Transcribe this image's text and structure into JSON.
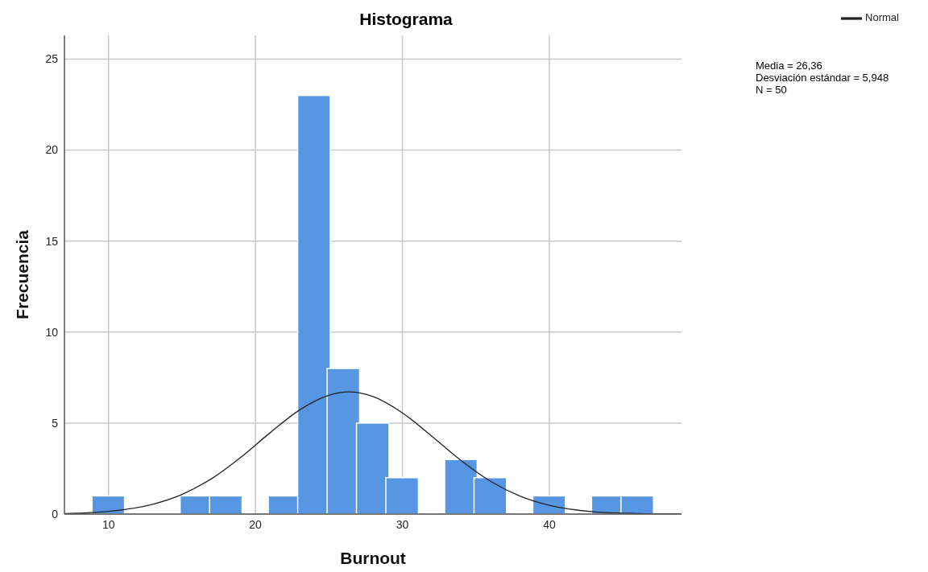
{
  "chart_data": {
    "type": "histogram",
    "title": "Histograma",
    "xlabel": "Burnout",
    "ylabel": "Frecuencia",
    "bins": [
      9,
      11,
      13,
      15,
      17,
      19,
      21,
      23,
      25,
      27,
      29,
      31,
      33,
      35,
      37,
      39,
      41,
      43,
      45,
      47
    ],
    "values": [
      1,
      0,
      0,
      1,
      1,
      0,
      1,
      23,
      8,
      5,
      2,
      0,
      3,
      2,
      0,
      1,
      0,
      1,
      1
    ],
    "color": "#5796e3",
    "series": [
      {
        "type": "line",
        "name": "Normal",
        "color": "#222222",
        "x": [
          7,
          10,
          13,
          15,
          17,
          19,
          21,
          23,
          25,
          26.36,
          28,
          30,
          32,
          34,
          36,
          38,
          40,
          43,
          46,
          49
        ],
        "values": [
          0.03,
          0.15,
          0.54,
          1.08,
          1.94,
          3.12,
          4.47,
          5.72,
          6.53,
          6.71,
          6.46,
          5.56,
          4.28,
          2.94,
          1.8,
          0.99,
          0.48,
          0.13,
          0.03,
          0
        ]
      }
    ],
    "xlim": [
      7,
      49
    ],
    "xticks": [
      10,
      20,
      30,
      40
    ],
    "ylim": [
      0,
      26.3
    ],
    "yticks": [
      0,
      5,
      10,
      15,
      20,
      25
    ],
    "grid": true,
    "legend": "top right",
    "annotations": [
      "Media = 26,36",
      "Desviación estándar = 5,948",
      "N = 50"
    ]
  }
}
